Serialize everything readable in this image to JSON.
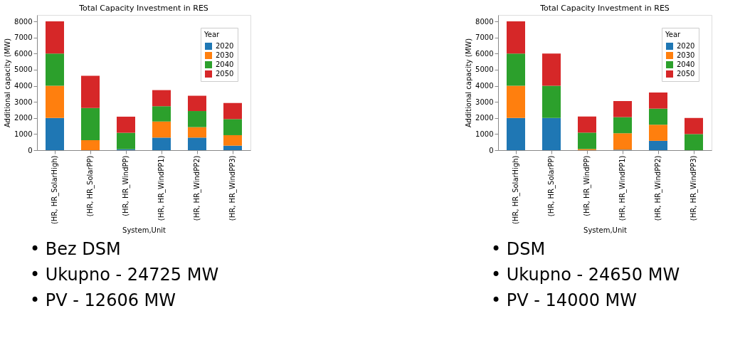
{
  "chart_data": [
    {
      "type": "bar",
      "stacked": true,
      "title": "Total Capacity Investment in RES",
      "xlabel": "System,Unit",
      "ylabel": "Additional capacity (MW)",
      "legend_title": "Year",
      "legend": "top right",
      "categories": [
        "(HR, HR_SolarHigh)",
        "(HR, HR_SolarPP)",
        "(HR, HR_WindPP)",
        "(HR, HR_WindPP1)",
        "(HR, HR_WindPP2)",
        "(HR, HR_WindPP3)"
      ],
      "ylim": [
        0,
        8400
      ],
      "yticks": [
        0,
        1000,
        2000,
        3000,
        4000,
        5000,
        6000,
        7000,
        8000
      ],
      "series": [
        {
          "name": "2020",
          "color": "#1f77b4",
          "values": [
            2000,
            0,
            60,
            780,
            780,
            280
          ]
        },
        {
          "name": "2030",
          "color": "#ff7f0e",
          "values": [
            2000,
            620,
            0,
            1000,
            650,
            650
          ]
        },
        {
          "name": "2040",
          "color": "#2ca02c",
          "values": [
            2000,
            2000,
            1020,
            950,
            1000,
            1000
          ]
        },
        {
          "name": "2050",
          "color": "#d62728",
          "values": [
            2000,
            2000,
            1000,
            1000,
            950,
            1000
          ]
        }
      ],
      "annotations": [
        "• Bez DSM",
        "• Ukupno - 24725 MW",
        "• PV - 12606 MW"
      ]
    },
    {
      "type": "bar",
      "stacked": true,
      "title": "Total Capacity Investment in RES",
      "xlabel": "System,Unit",
      "ylabel": "Additional capacity (MW)",
      "legend_title": "Year",
      "legend": "top right",
      "categories": [
        "(HR, HR_SolarHigh)",
        "(HR, HR_SolarPP)",
        "(HR, HR_WindPP)",
        "(HR, HR_WindPP1)",
        "(HR, HR_WindPP2)",
        "(HR, HR_WindPP3)"
      ],
      "ylim": [
        0,
        8400
      ],
      "yticks": [
        0,
        1000,
        2000,
        3000,
        4000,
        5000,
        6000,
        7000,
        8000
      ],
      "series": [
        {
          "name": "2020",
          "color": "#1f77b4",
          "values": [
            2000,
            2000,
            0,
            30,
            580,
            0
          ]
        },
        {
          "name": "2030",
          "color": "#ff7f0e",
          "values": [
            2000,
            0,
            70,
            1020,
            1000,
            0
          ]
        },
        {
          "name": "2040",
          "color": "#2ca02c",
          "values": [
            2000,
            2000,
            1020,
            1000,
            1000,
            1000
          ]
        },
        {
          "name": "2050",
          "color": "#d62728",
          "values": [
            2000,
            2000,
            1000,
            1000,
            1000,
            1000
          ]
        }
      ],
      "annotations": [
        "• DSM",
        "• Ukupno - 24650 MW",
        "• PV - 14000 MW"
      ]
    }
  ]
}
